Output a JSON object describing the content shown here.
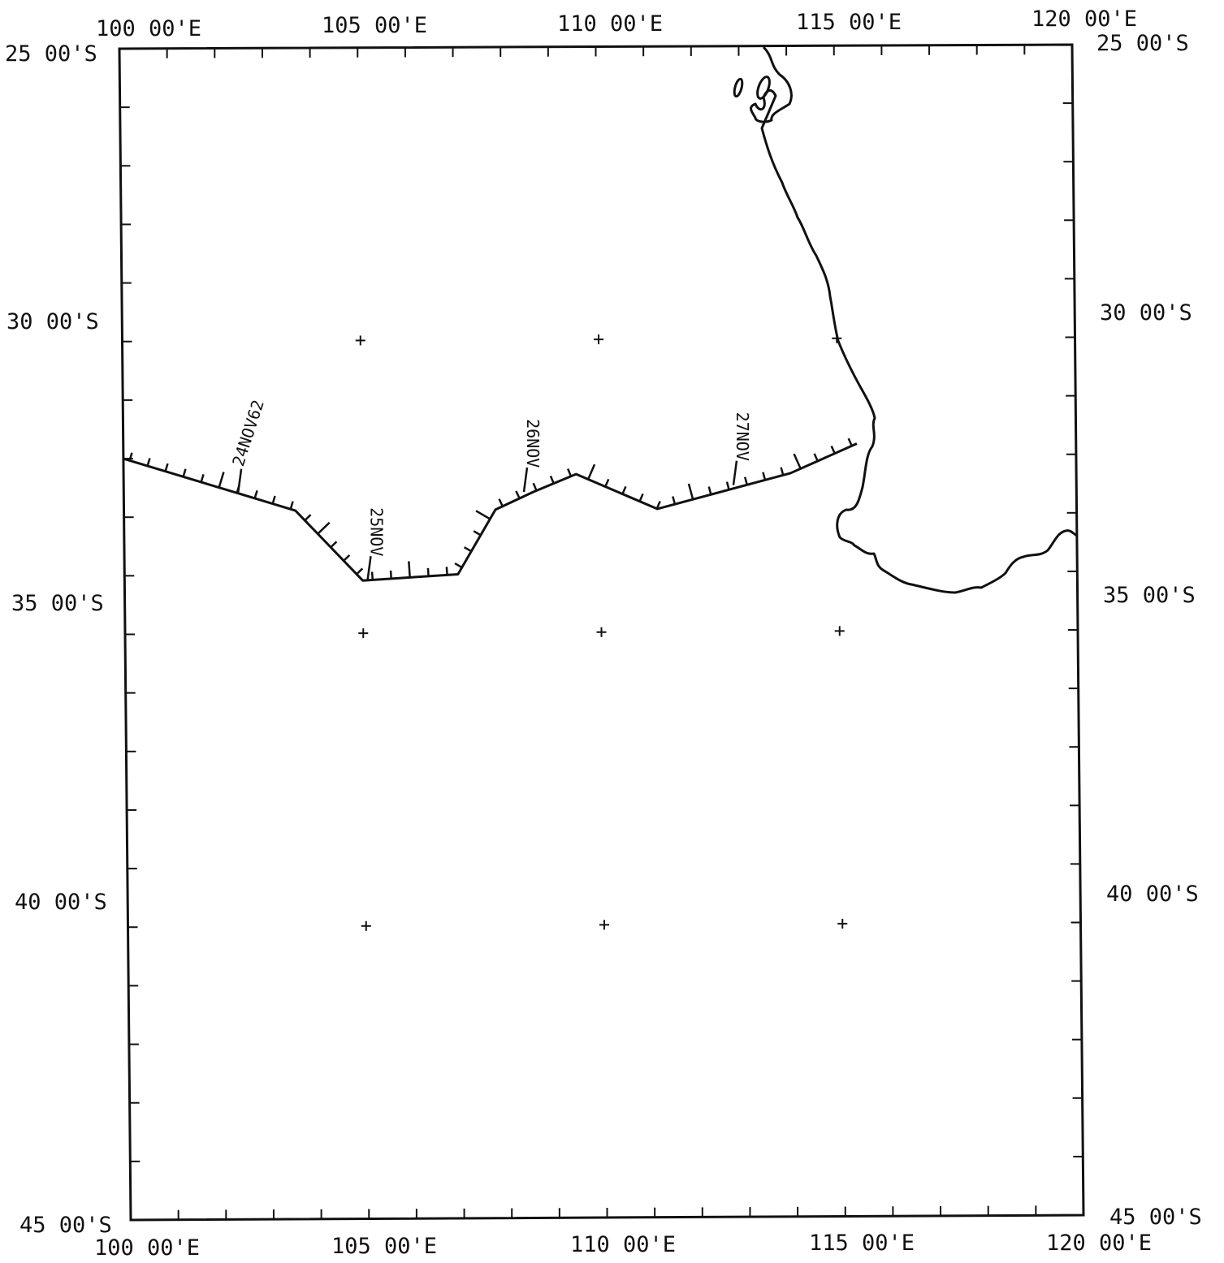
{
  "map": {
    "lon_range": [
      100,
      120
    ],
    "lat_range": [
      -25,
      -45
    ],
    "top_lon_labels": [
      "100 00'E",
      "105 00'E",
      "110 00'E",
      "115 00'E",
      "120 00'E"
    ],
    "bottom_lon_labels": [
      "100 00'E",
      "105 00'E",
      "110 00'E",
      "115 00'E",
      "120 00'E"
    ],
    "left_lat_labels": [
      "25 00'S",
      "30 00'S",
      "35 00'S",
      "40 00'S",
      "45 00'S"
    ],
    "right_lat_labels": [
      "25 00'S",
      "30 00'S",
      "35 00'S",
      "40 00'S",
      "45 00'S"
    ],
    "grid_crosses": [
      [
        105,
        -30
      ],
      [
        110,
        -30
      ],
      [
        115,
        -30
      ],
      [
        105,
        -35
      ],
      [
        110,
        -35
      ],
      [
        115,
        -35
      ],
      [
        105,
        -40
      ],
      [
        110,
        -40
      ],
      [
        115,
        -40
      ]
    ],
    "track": [
      [
        100.0,
        -32.0
      ],
      [
        102.4,
        -32.6
      ],
      [
        103.6,
        -32.9
      ],
      [
        105.0,
        -34.1
      ],
      [
        107.0,
        -34.0
      ],
      [
        107.8,
        -32.9
      ],
      [
        108.6,
        -32.6
      ],
      [
        109.5,
        -32.3
      ],
      [
        111.2,
        -32.9
      ],
      [
        114.0,
        -32.3
      ],
      [
        115.4,
        -31.8
      ]
    ],
    "date_labels": [
      {
        "text": "24NOV62",
        "lon": 102.4,
        "lat": -32.6
      },
      {
        "text": "25NOV",
        "lon": 105.1,
        "lat": -34.1
      },
      {
        "text": "26NOV",
        "lon": 108.4,
        "lat": -32.6
      },
      {
        "text": "27NOV",
        "lon": 112.8,
        "lat": -32.5
      }
    ]
  }
}
